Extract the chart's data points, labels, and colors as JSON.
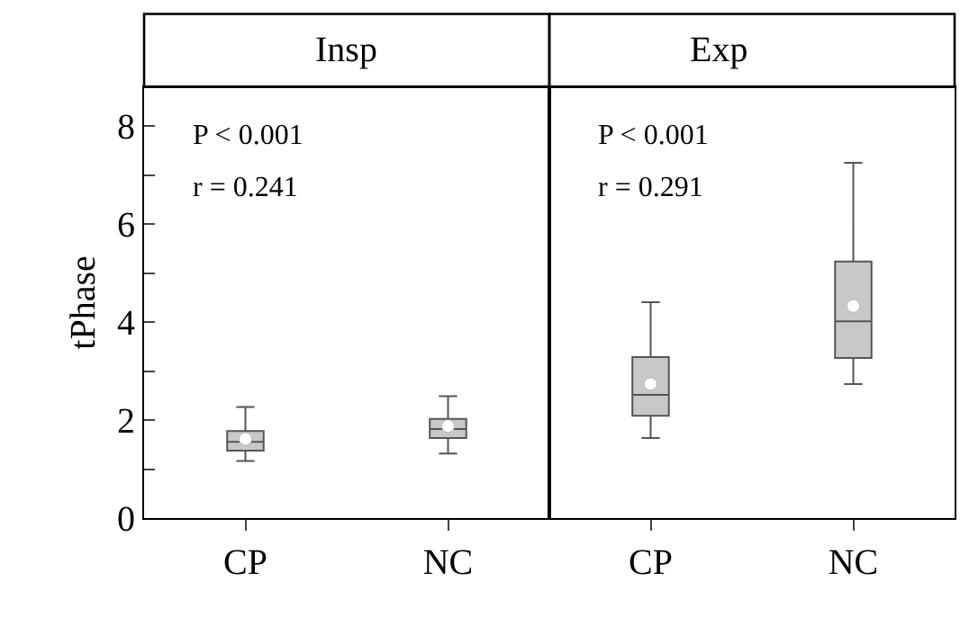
{
  "chart_data": [
    {
      "type": "box",
      "title": "Insp",
      "ylabel": "tPhase",
      "categories": [
        "CP",
        "NC"
      ],
      "color": "#c8c8c8",
      "boxes": [
        {
          "low": 1.17,
          "q1": 1.38,
          "median": 1.56,
          "q3": 1.78,
          "high": 2.27,
          "mean": 1.62
        },
        {
          "low": 1.32,
          "q1": 1.64,
          "median": 1.82,
          "q3": 2.03,
          "high": 2.49,
          "mean": 1.88
        }
      ],
      "ylim": [
        0,
        8.8
      ],
      "yticks": [
        0,
        {
          "value": 1,
          "label": null
        },
        2,
        {
          "value": 3,
          "label": null
        },
        4,
        {
          "value": 5,
          "label": null
        },
        6,
        {
          "value": 7,
          "label": null
        },
        8
      ],
      "annotations": [
        "P < 0.001",
        "r = 0.241"
      ]
    },
    {
      "type": "box",
      "title": "Exp",
      "categories": [
        "CP",
        "NC"
      ],
      "color": "#c8c8c8",
      "boxes": [
        {
          "low": 1.64,
          "q1": 2.09,
          "median": 2.52,
          "q3": 3.29,
          "high": 4.41,
          "mean": 2.74
        },
        {
          "low": 2.74,
          "q1": 3.27,
          "median": 4.02,
          "q3": 5.24,
          "high": 7.25,
          "mean": 4.33
        }
      ],
      "ylim": [
        0,
        8.8
      ],
      "tick_labels": "x",
      "annotations": [
        "P < 0.001",
        "r = 0.291"
      ]
    }
  ]
}
